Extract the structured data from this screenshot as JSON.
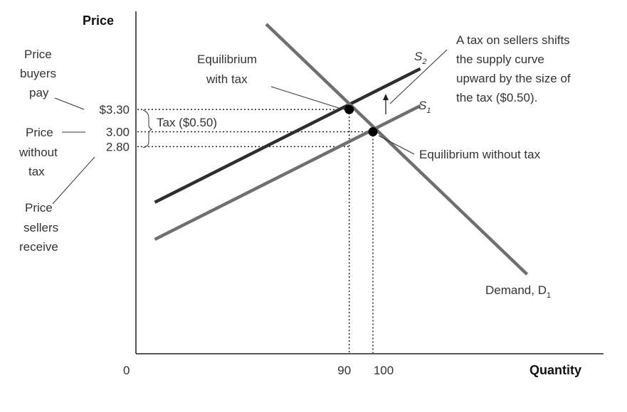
{
  "chart_data": {
    "type": "line",
    "y_axis_title": "Price",
    "x_axis_title": "Quantity",
    "origin_label": "0",
    "x_ticks": [
      {
        "value": 90,
        "label": "90"
      },
      {
        "value": 100,
        "label": "100"
      }
    ],
    "y_ticks": [
      {
        "value": 3.3,
        "label": "$3.30"
      },
      {
        "value": 3.0,
        "label": "3.00"
      },
      {
        "value": 2.8,
        "label": "2.80"
      }
    ],
    "series": [
      {
        "name": "S2",
        "label_main": "S",
        "label_sub": "2",
        "color": "#2e2e2e",
        "points": [
          [
            8,
            2.05
          ],
          [
            120,
            3.85
          ]
        ]
      },
      {
        "name": "S1",
        "label_main": "S",
        "label_sub": "1",
        "color": "#6f6f6f",
        "points": [
          [
            8,
            1.55
          ],
          [
            120,
            3.35
          ]
        ]
      },
      {
        "name": "Demand, D1",
        "label_main": "Demand, D",
        "label_sub": "1",
        "color": "#6f6f6f",
        "points": [
          [
            55,
            4.45
          ],
          [
            165,
            1.08
          ]
        ]
      }
    ],
    "equilibria": [
      {
        "name": "with tax",
        "x": 90,
        "y": 3.3
      },
      {
        "name": "without tax",
        "x": 100,
        "y": 3.0
      }
    ],
    "annotations": {
      "price_buyers_pay": [
        "Price",
        "buyers",
        "pay"
      ],
      "price_without_tax": [
        "Price",
        "without",
        "tax"
      ],
      "price_sellers_receive": [
        "Price",
        "sellers",
        "receive"
      ],
      "eq_with_tax": [
        "Equilibrium",
        "with tax"
      ],
      "eq_without_tax": "Equilibrium without tax",
      "tax_label": "Tax ($0.50)",
      "shift_note": [
        "A tax on sellers shifts",
        "the supply curve",
        "upward by the size of",
        "the tax ($0.50)."
      ]
    }
  }
}
